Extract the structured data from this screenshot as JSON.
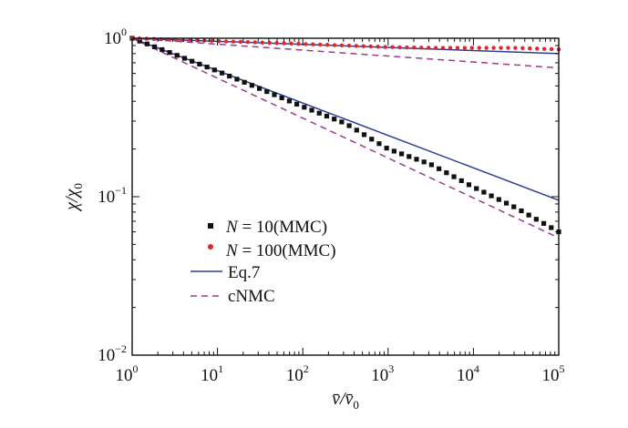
{
  "chart_data": {
    "type": "line",
    "title": "",
    "xlabel": {
      "main": "v̄/v̄",
      "sub": "0"
    },
    "ylabel": {
      "main": "χ/χ",
      "sub": "0"
    },
    "xscale": "log",
    "yscale": "log",
    "xlim": [
      1,
      100000
    ],
    "ylim": [
      0.01,
      1
    ],
    "x_ticks": [
      {
        "base": "10",
        "exp": "0",
        "value": 1
      },
      {
        "base": "10",
        "exp": "1",
        "value": 10
      },
      {
        "base": "10",
        "exp": "2",
        "value": 100
      },
      {
        "base": "10",
        "exp": "3",
        "value": 1000
      },
      {
        "base": "10",
        "exp": "4",
        "value": 10000
      },
      {
        "base": "10",
        "exp": "5",
        "value": 100000
      }
    ],
    "y_ticks": [
      {
        "base": "10",
        "exp": "0",
        "value": 1
      },
      {
        "base": "10",
        "exp": "−1",
        "value": 0.1
      },
      {
        "base": "10",
        "exp": "−2",
        "value": 0.01
      }
    ],
    "grid": false,
    "legend_position": "lower-left",
    "series": [
      {
        "name": "N = 10(MMC)",
        "name_n": "N",
        "name_rest": " = 10(MMC)",
        "style": "squares",
        "color": "#111111",
        "x": [
          1,
          3.16,
          10,
          31.6,
          100,
          316,
          1000,
          3162,
          10000,
          31623,
          100000
        ],
        "y": [
          1.0,
          0.79,
          0.62,
          0.48,
          0.37,
          0.29,
          0.2,
          0.16,
          0.115,
          0.085,
          0.06
        ]
      },
      {
        "name": "N = 100(MMC)",
        "name_n": "N",
        "name_rest": " = 100(MMC)",
        "style": "dots",
        "color": "#e0262d",
        "x": [
          1,
          3.16,
          10,
          31.6,
          100,
          316,
          1000,
          3162,
          10000,
          31623,
          100000
        ],
        "y": [
          1.0,
          0.98,
          0.96,
          0.94,
          0.92,
          0.9,
          0.88,
          0.87,
          0.87,
          0.87,
          0.85
        ]
      },
      {
        "name": "Eq.7",
        "style": "solid",
        "color": "#2b3f96",
        "lines": [
          {
            "x": [
              1,
              100000
            ],
            "y": [
              1.0,
              0.095
            ]
          },
          {
            "x": [
              1,
              100000
            ],
            "y": [
              1.0,
              0.8
            ]
          }
        ]
      },
      {
        "name": "cNMC",
        "style": "dashed",
        "color": "#9a3c8c",
        "lines": [
          {
            "x": [
              1,
              100000
            ],
            "y": [
              1.0,
              0.055
            ]
          },
          {
            "x": [
              1,
              100000
            ],
            "y": [
              1.0,
              0.65
            ]
          }
        ]
      }
    ]
  }
}
